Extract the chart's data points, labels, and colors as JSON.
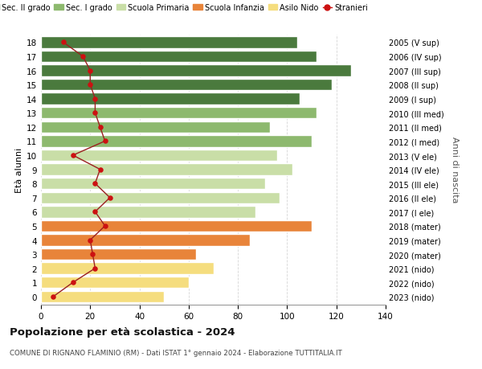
{
  "ages": [
    0,
    1,
    2,
    3,
    4,
    5,
    6,
    7,
    8,
    9,
    10,
    11,
    12,
    13,
    14,
    15,
    16,
    17,
    18
  ],
  "right_labels": [
    "2023 (nido)",
    "2022 (nido)",
    "2021 (nido)",
    "2020 (mater)",
    "2019 (mater)",
    "2018 (mater)",
    "2017 (I ele)",
    "2016 (II ele)",
    "2015 (III ele)",
    "2014 (IV ele)",
    "2013 (V ele)",
    "2012 (I med)",
    "2011 (II med)",
    "2010 (III med)",
    "2009 (I sup)",
    "2008 (II sup)",
    "2007 (III sup)",
    "2006 (IV sup)",
    "2005 (V sup)"
  ],
  "bar_values": [
    50,
    60,
    70,
    63,
    85,
    110,
    87,
    97,
    91,
    102,
    96,
    110,
    93,
    112,
    105,
    118,
    126,
    112,
    104
  ],
  "bar_colors": [
    "#f5dd7e",
    "#f5dd7e",
    "#f5dd7e",
    "#e8843a",
    "#e8843a",
    "#e8843a",
    "#c9dea7",
    "#c9dea7",
    "#c9dea7",
    "#c9dea7",
    "#c9dea7",
    "#8db96e",
    "#8db96e",
    "#8db96e",
    "#4a7a3d",
    "#4a7a3d",
    "#4a7a3d",
    "#4a7a3d",
    "#4a7a3d"
  ],
  "stranieri_values": [
    5,
    13,
    22,
    21,
    20,
    26,
    22,
    28,
    22,
    24,
    13,
    26,
    24,
    22,
    22,
    20,
    20,
    17,
    9
  ],
  "legend_labels": [
    "Sec. II grado",
    "Sec. I grado",
    "Scuola Primaria",
    "Scuola Infanzia",
    "Asilo Nido",
    "Stranieri"
  ],
  "legend_colors": [
    "#4a7a3d",
    "#8db96e",
    "#c9dea7",
    "#e8843a",
    "#f5dd7e",
    "#cc0000"
  ],
  "title": "Popolazione per età scolastica - 2024",
  "subtitle": "COMUNE DI RIGNANO FLAMINIO (RM) - Dati ISTAT 1° gennaio 2024 - Elaborazione TUTTITALIA.IT",
  "ylabel_left": "Età alunni",
  "ylabel_right": "Anni di nascita",
  "xlim": [
    0,
    140
  ],
  "xticks": [
    0,
    20,
    40,
    60,
    80,
    100,
    120,
    140
  ],
  "grid_color": "#cccccc",
  "bar_height": 0.82
}
